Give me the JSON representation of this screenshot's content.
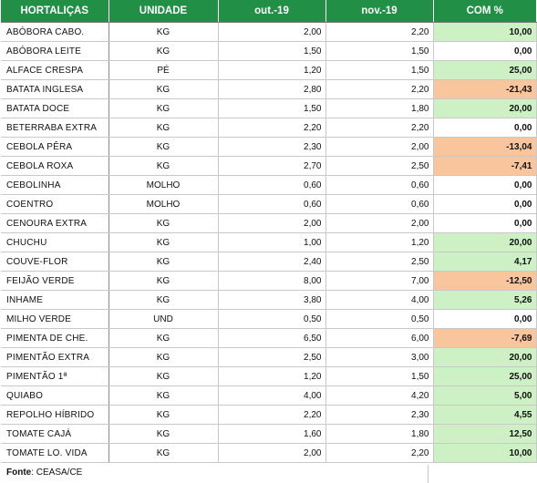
{
  "table": {
    "headers": [
      "HORTALIÇAS",
      "UNIDADE",
      "out.-19",
      "nov.-19",
      "COM %"
    ],
    "rows": [
      {
        "name": "ABÓBORA CABO.",
        "unit": "KG",
        "oct": "2,00",
        "nov": "2,20",
        "pct": "10,00",
        "trend": "pos"
      },
      {
        "name": "ABÓBORA LEITE",
        "unit": "KG",
        "oct": "1,50",
        "nov": "1,50",
        "pct": "0,00",
        "trend": "zero"
      },
      {
        "name": "ALFACE  CRESPA",
        "unit": "PÉ",
        "oct": "1,20",
        "nov": "1,50",
        "pct": "25,00",
        "trend": "pos"
      },
      {
        "name": "BATATA INGLESA",
        "unit": "KG",
        "oct": "2,80",
        "nov": "2,20",
        "pct": "-21,43",
        "trend": "neg"
      },
      {
        "name": "BATATA DOCE",
        "unit": "KG",
        "oct": "1,50",
        "nov": "1,80",
        "pct": "20,00",
        "trend": "pos"
      },
      {
        "name": "BETERRABA EXTRA",
        "unit": "KG",
        "oct": "2,20",
        "nov": "2,20",
        "pct": "0,00",
        "trend": "zero"
      },
      {
        "name": "CEBOLA PÊRA",
        "unit": "KG",
        "oct": "2,30",
        "nov": "2,00",
        "pct": "-13,04",
        "trend": "neg"
      },
      {
        "name": "CEBOLA ROXA",
        "unit": "KG",
        "oct": "2,70",
        "nov": "2,50",
        "pct": "-7,41",
        "trend": "neg"
      },
      {
        "name": "CEBOLINHA",
        "unit": "MOLHO",
        "oct": "0,60",
        "nov": "0,60",
        "pct": "0,00",
        "trend": "zero"
      },
      {
        "name": "COENTRO",
        "unit": "MOLHO",
        "oct": "0,60",
        "nov": "0,60",
        "pct": "0,00",
        "trend": "zero"
      },
      {
        "name": "CENOURA EXTRA",
        "unit": "KG",
        "oct": "2,00",
        "nov": "2,00",
        "pct": "0,00",
        "trend": "zero"
      },
      {
        "name": "CHUCHU",
        "unit": "KG",
        "oct": "1,00",
        "nov": "1,20",
        "pct": "20,00",
        "trend": "pos"
      },
      {
        "name": "COUVE-FLOR",
        "unit": "KG",
        "oct": "2,40",
        "nov": "2,50",
        "pct": "4,17",
        "trend": "pos"
      },
      {
        "name": "FEIJÃO VERDE",
        "unit": "KG",
        "oct": "8,00",
        "nov": "7,00",
        "pct": "-12,50",
        "trend": "neg"
      },
      {
        "name": "INHAME",
        "unit": "KG",
        "oct": "3,80",
        "nov": "4,00",
        "pct": "5,26",
        "trend": "pos"
      },
      {
        "name": "MILHO VERDE",
        "unit": "UND",
        "oct": "0,50",
        "nov": "0,50",
        "pct": "0,00",
        "trend": "zero"
      },
      {
        "name": "PIMENTA DE CHE.",
        "unit": "KG",
        "oct": "6,50",
        "nov": "6,00",
        "pct": "-7,69",
        "trend": "neg"
      },
      {
        "name": "PIMENTÃO EXTRA",
        "unit": "KG",
        "oct": "2,50",
        "nov": "3,00",
        "pct": "20,00",
        "trend": "pos"
      },
      {
        "name": "PIMENTÃO 1ª",
        "unit": "KG",
        "oct": "1,20",
        "nov": "1,50",
        "pct": "25,00",
        "trend": "pos"
      },
      {
        "name": "QUIABO",
        "unit": "KG",
        "oct": "4,00",
        "nov": "4,20",
        "pct": "5,00",
        "trend": "pos"
      },
      {
        "name": "REPOLHO HÍBRIDO",
        "unit": "KG",
        "oct": "2,20",
        "nov": "2,30",
        "pct": "4,55",
        "trend": "pos"
      },
      {
        "name": "TOMATE CAJÁ",
        "unit": "KG",
        "oct": "1,60",
        "nov": "1,80",
        "pct": "12,50",
        "trend": "pos"
      },
      {
        "name": "TOMATE LO. VIDA",
        "unit": "KG",
        "oct": "2,00",
        "nov": "2,20",
        "pct": "10,00",
        "trend": "pos"
      }
    ]
  },
  "footer": {
    "label": "Fonte",
    "source": ": CEASA/CE"
  },
  "colors": {
    "header_bg": "#218f45",
    "positive_bg": "#cdf1c4",
    "negative_bg": "#f8c59c"
  }
}
